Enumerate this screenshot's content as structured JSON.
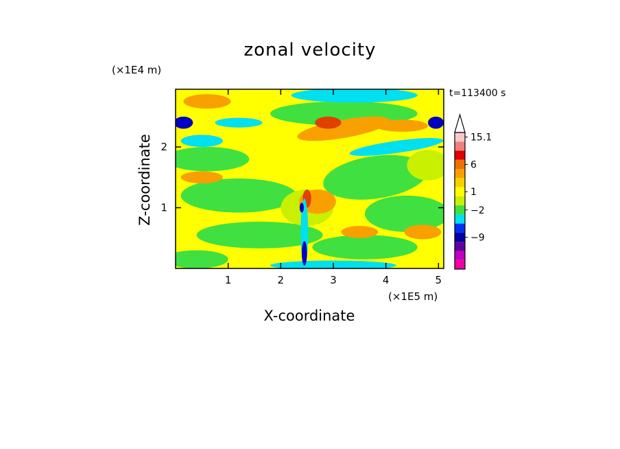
{
  "chart_data": {
    "type": "heatmap",
    "title": "zonal velocity",
    "xlabel": "X-coordinate",
    "ylabel": "Z-coordinate",
    "x_unit": "(×1E5 m)",
    "y_unit": "(×1E4 m)",
    "time_label": "t=113400 s",
    "xlim": [
      0,
      5.1
    ],
    "ylim": [
      0,
      2.95
    ],
    "x_ticks": [
      1,
      2,
      3,
      4,
      5
    ],
    "y_ticks": [
      1,
      2
    ],
    "colorbar": {
      "labeled_levels": [
        "15.1",
        "6",
        "1",
        "−2",
        "−9"
      ],
      "colors": [
        "#f8c8c8",
        "#f08080",
        "#e00000",
        "#f07000",
        "#f8a000",
        "#f8d000",
        "#ffff00",
        "#c8f000",
        "#40e040",
        "#00e0f0",
        "#0030f0",
        "#0000a0",
        "#6000a0",
        "#c000c0",
        "#f000a0"
      ]
    },
    "field_colors": {
      "background_positive": "#ffff00",
      "weak_positive": "#c8f000",
      "zero_band": "#40e040",
      "negative_band": "#00e0f0",
      "strong_negative": "#0000c0",
      "positive_band": "#f8a000",
      "strong_positive": "#e04000"
    }
  }
}
